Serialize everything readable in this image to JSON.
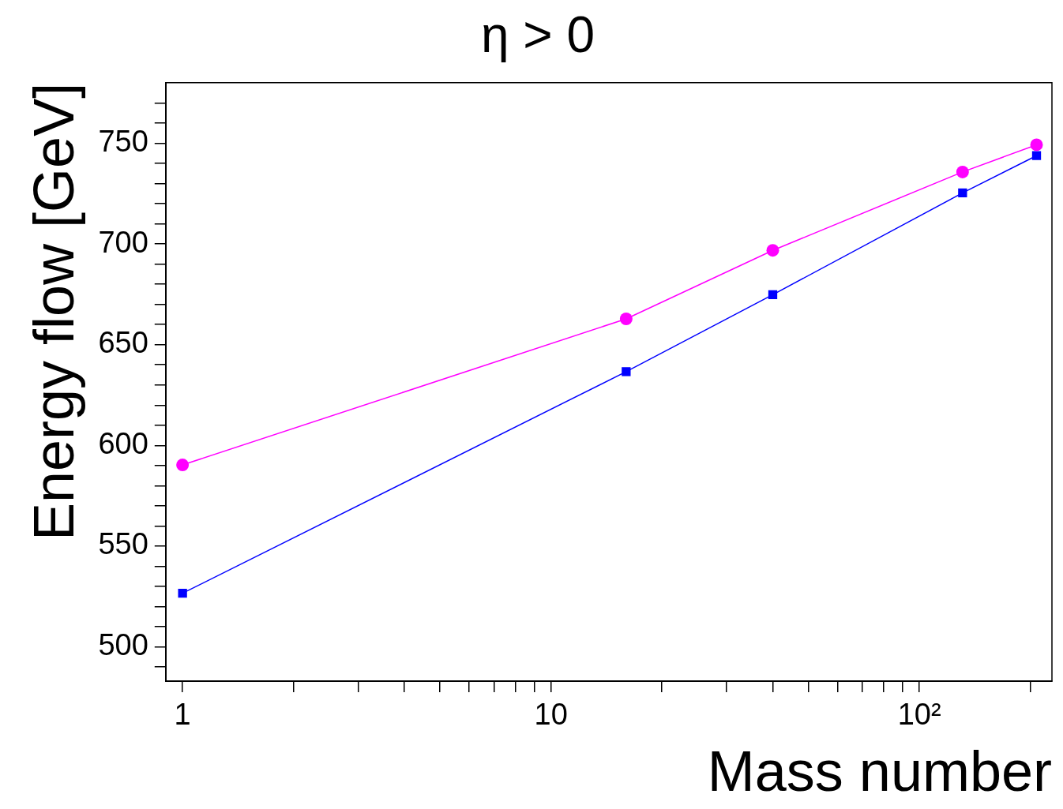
{
  "chart_data": {
    "type": "line",
    "title": "η > 0",
    "xlabel": "Mass number",
    "ylabel": "Energy flow [GeV]",
    "log": "x",
    "grid": false,
    "legend": false,
    "xlim": [
      0.9,
      229
    ],
    "ylim": [
      483,
      780
    ],
    "xticks": [
      1,
      {
        "value": 2,
        "label": null
      },
      {
        "value": 3,
        "label": null
      },
      {
        "value": 4,
        "label": null
      },
      {
        "value": 5,
        "label": null
      },
      {
        "value": 6,
        "label": null
      },
      {
        "value": 7,
        "label": null
      },
      {
        "value": 8,
        "label": null
      },
      {
        "value": 9,
        "label": null
      },
      10,
      {
        "value": 20,
        "label": null
      },
      {
        "value": 30,
        "label": null
      },
      {
        "value": 40,
        "label": null
      },
      {
        "value": 50,
        "label": null
      },
      {
        "value": 60,
        "label": null
      },
      {
        "value": 70,
        "label": null
      },
      {
        "value": 80,
        "label": null
      },
      {
        "value": 90,
        "label": null
      },
      {
        "value": 100,
        "label": "10²"
      },
      {
        "value": 200,
        "label": null
      }
    ],
    "yticks": [
      {
        "value": 490,
        "label": null
      },
      500,
      {
        "value": 510,
        "label": null
      },
      {
        "value": 520,
        "label": null
      },
      {
        "value": 530,
        "label": null
      },
      {
        "value": 540,
        "label": null
      },
      550,
      {
        "value": 560,
        "label": null
      },
      {
        "value": 570,
        "label": null
      },
      {
        "value": 580,
        "label": null
      },
      {
        "value": 590,
        "label": null
      },
      600,
      {
        "value": 610,
        "label": null
      },
      {
        "value": 620,
        "label": null
      },
      {
        "value": 630,
        "label": null
      },
      {
        "value": 640,
        "label": null
      },
      650,
      {
        "value": 660,
        "label": null
      },
      {
        "value": 670,
        "label": null
      },
      {
        "value": 680,
        "label": null
      },
      {
        "value": 690,
        "label": null
      },
      700,
      {
        "value": 710,
        "label": null
      },
      {
        "value": 720,
        "label": null
      },
      {
        "value": 730,
        "label": null
      },
      {
        "value": 740,
        "label": null
      },
      750,
      {
        "value": 760,
        "label": null
      },
      {
        "value": 770,
        "label": null
      }
    ],
    "x": [
      1,
      16,
      40,
      131,
      208
    ],
    "series": [
      {
        "color": "#ff00ff",
        "marker": "circle",
        "values": [
          590.3,
          662.8,
          696.8,
          735.7,
          749.2
        ]
      },
      {
        "color": "#0000ff",
        "marker": "square",
        "values": [
          526.6,
          636.6,
          674.8,
          725.3,
          743.8
        ]
      }
    ]
  }
}
